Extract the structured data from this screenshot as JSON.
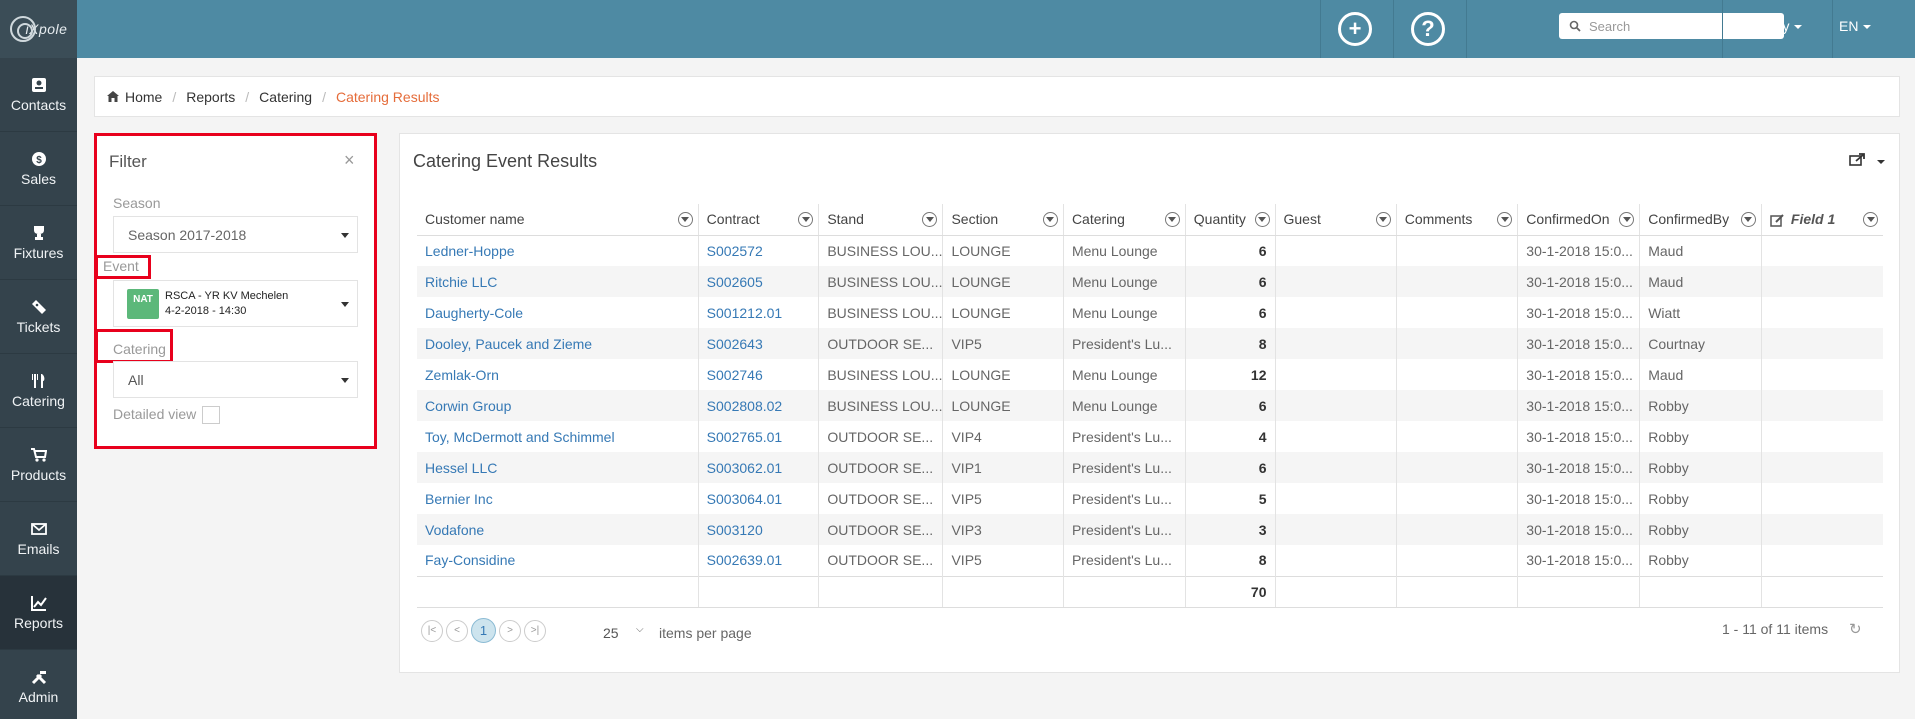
{
  "app": {
    "logo_text": "iXpole"
  },
  "sidebar": {
    "items": [
      {
        "label": "Contacts",
        "icon": "contacts-icon"
      },
      {
        "label": "Sales",
        "icon": "dollar-icon"
      },
      {
        "label": "Fixtures",
        "icon": "trophy-icon"
      },
      {
        "label": "Tickets",
        "icon": "ticket-icon"
      },
      {
        "label": "Catering",
        "icon": "cutlery-icon"
      },
      {
        "label": "Products",
        "icon": "cart-icon"
      },
      {
        "label": "Emails",
        "icon": "envelope-icon"
      },
      {
        "label": "Reports",
        "icon": "chart-icon",
        "active": true
      },
      {
        "label": "Admin",
        "icon": "tools-icon"
      }
    ]
  },
  "topbar": {
    "search_placeholder": "Search",
    "user": "Robby",
    "language": "EN"
  },
  "breadcrumb": {
    "home": "Home",
    "items": [
      "Reports",
      "Catering"
    ],
    "current": "Catering Results"
  },
  "filter": {
    "title": "Filter",
    "close": "×",
    "season_label": "Season",
    "season_value": "Season 2017-2018",
    "event_label": "Event",
    "event_badge": "NAT",
    "event_name": "RSCA - YR KV Mechelen",
    "event_date": "4-2-2018 - 14:30",
    "catering_label": "Catering",
    "catering_value": "All",
    "detailed_label": "Detailed view"
  },
  "results": {
    "title": "Catering Event Results",
    "columns": [
      "Customer name",
      "Contract",
      "Stand",
      "Section",
      "Catering",
      "Quantity",
      "Guest",
      "Comments",
      "ConfirmedOn",
      "ConfirmedBy",
      "Field 1"
    ],
    "rows": [
      [
        "Ledner-Hoppe",
        "S002572",
        "BUSINESS LOU...",
        "LOUNGE",
        "Menu Lounge",
        "6",
        "",
        "",
        "30-1-2018 15:0...",
        "Maud",
        ""
      ],
      [
        "Ritchie LLC",
        "S002605",
        "BUSINESS LOU...",
        "LOUNGE",
        "Menu Lounge",
        "6",
        "",
        "",
        "30-1-2018 15:0...",
        "Maud",
        ""
      ],
      [
        "Daugherty-Cole",
        "S001212.01",
        "BUSINESS LOU...",
        "LOUNGE",
        "Menu Lounge",
        "6",
        "",
        "",
        "30-1-2018 15:0...",
        "Wiatt",
        ""
      ],
      [
        "Dooley, Paucek and Zieme",
        "S002643",
        "OUTDOOR SE...",
        "VIP5",
        "President's Lu...",
        "8",
        "",
        "",
        "30-1-2018 15:0...",
        "Courtnay",
        ""
      ],
      [
        "Zemlak-Orn",
        "S002746",
        "BUSINESS LOU...",
        "LOUNGE",
        "Menu Lounge",
        "12",
        "",
        "",
        "30-1-2018 15:0...",
        "Maud",
        ""
      ],
      [
        "Corwin Group",
        "S002808.02",
        "BUSINESS LOU...",
        "LOUNGE",
        "Menu Lounge",
        "6",
        "",
        "",
        "30-1-2018 15:0...",
        "Robby",
        ""
      ],
      [
        "Toy, McDermott and Schimmel",
        "S002765.01",
        "OUTDOOR SE...",
        "VIP4",
        "President's Lu...",
        "4",
        "",
        "",
        "30-1-2018 15:0...",
        "Robby",
        ""
      ],
      [
        "Hessel LLC",
        "S003062.01",
        "OUTDOOR SE...",
        "VIP1",
        "President's Lu...",
        "6",
        "",
        "",
        "30-1-2018 15:0...",
        "Robby",
        ""
      ],
      [
        "Bernier Inc",
        "S003064.01",
        "OUTDOOR SE...",
        "VIP5",
        "President's Lu...",
        "5",
        "",
        "",
        "30-1-2018 15:0...",
        "Robby",
        ""
      ],
      [
        "Vodafone",
        "S003120",
        "OUTDOOR SE...",
        "VIP3",
        "President's Lu...",
        "3",
        "",
        "",
        "30-1-2018 15:0...",
        "Robby",
        ""
      ],
      [
        "Fay-Considine",
        "S002639.01",
        "OUTDOOR SE...",
        "VIP5",
        "President's Lu...",
        "8",
        "",
        "",
        "30-1-2018 15:0...",
        "Robby",
        ""
      ]
    ],
    "total_quantity": "70",
    "pager": {
      "current_page": "1",
      "per_page": "25",
      "per_page_label": "items per page",
      "summary": "1 - 11 of 11 items"
    }
  },
  "colors": {
    "accent": "#4e8aa3",
    "sidebar": "#34434c",
    "link": "#3679b5",
    "highlight": "#e8001c",
    "crumb_current": "#e56c3a"
  }
}
